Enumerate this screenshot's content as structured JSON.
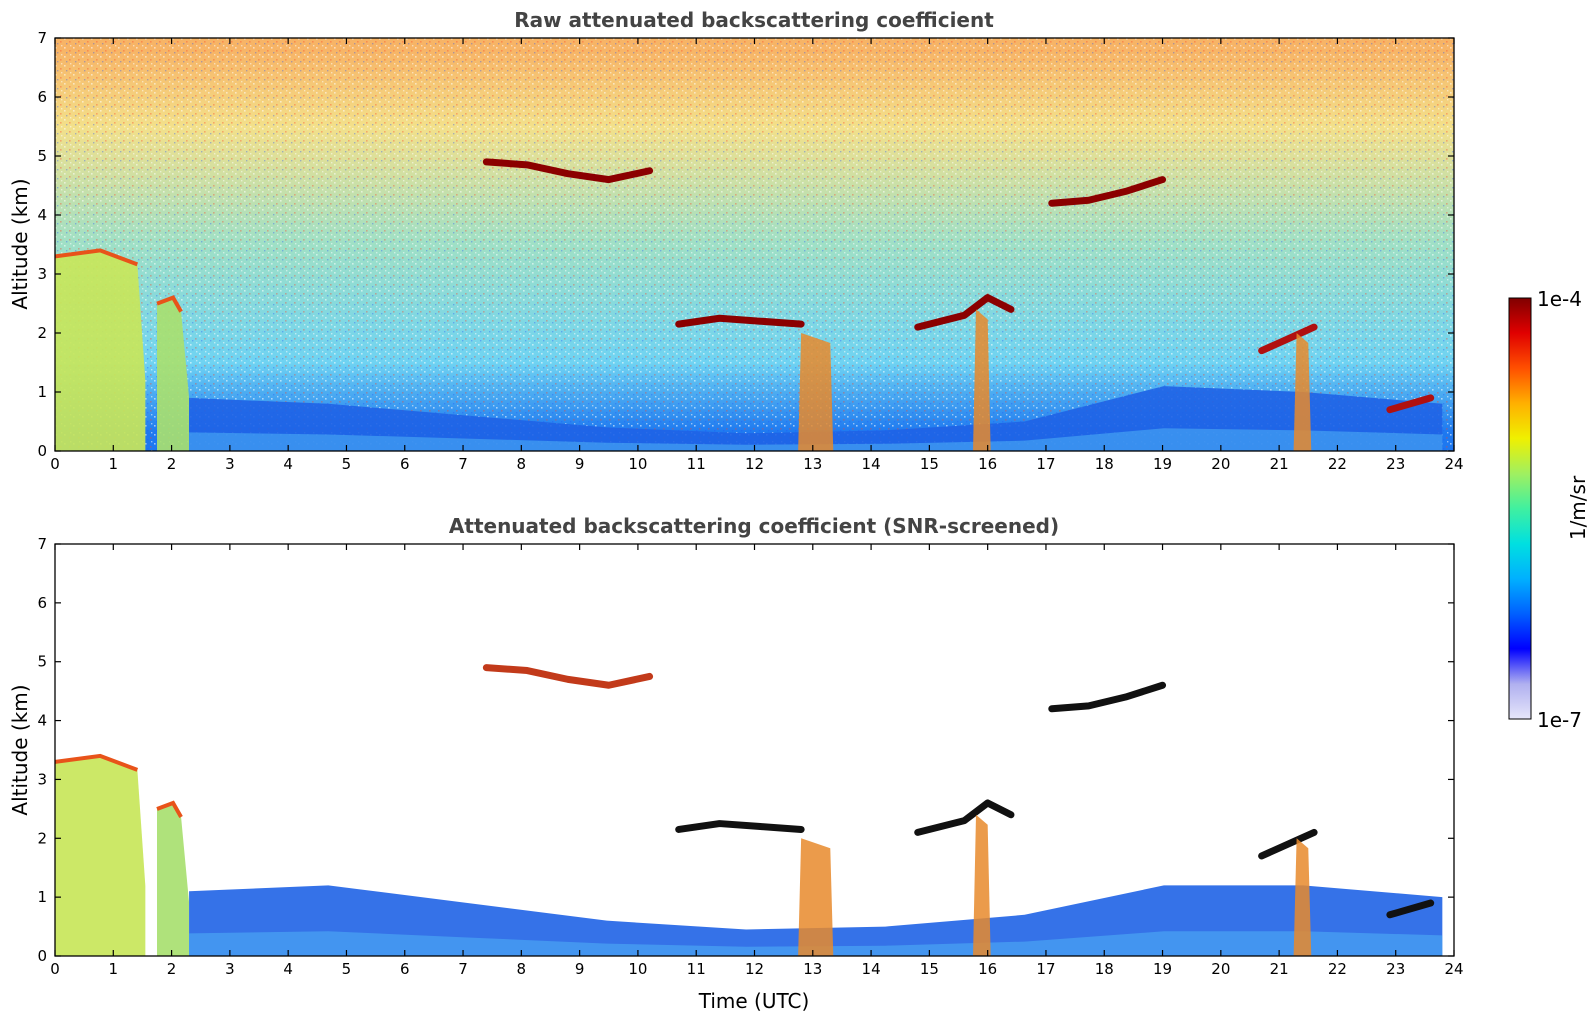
{
  "chart_data": [
    {
      "type": "heatmap",
      "title": "Raw attenuated backscattering coefficient",
      "xlabel": "",
      "ylabel": "Altitude (km)",
      "xlim": [
        0,
        24
      ],
      "ylim": [
        0,
        7
      ],
      "xticks": [
        "0",
        "1",
        "2",
        "3",
        "4",
        "5",
        "6",
        "7",
        "8",
        "9",
        "10",
        "11",
        "12",
        "13",
        "14",
        "15",
        "16",
        "17",
        "18",
        "19",
        "20",
        "21",
        "22",
        "23",
        "24"
      ],
      "yticks": [
        "0",
        "1",
        "2",
        "3",
        "4",
        "5",
        "6",
        "7"
      ],
      "color_scale": "log",
      "background": {
        "description": "noisy signal everywhere; values increase with altitude",
        "levels_by_altitude": [
          {
            "altitude_km": 0.3,
            "color": "#1d78f0"
          },
          {
            "altitude_km": 1.5,
            "color": "#6fd3f2"
          },
          {
            "altitude_km": 3.5,
            "color": "#9fe0c6"
          },
          {
            "altitude_km": 5.5,
            "color": "#f3e08a"
          },
          {
            "altitude_km": 6.8,
            "color": "#f7b466"
          }
        ]
      },
      "features": [
        {
          "kind": "low_cloud_column",
          "t": [
            0.0,
            1.55
          ],
          "top_km": 3.4,
          "color": "#c8e65a"
        },
        {
          "kind": "low_cloud_column",
          "t": [
            1.75,
            2.3
          ],
          "top_km": 2.6,
          "color": "#a8e070"
        },
        {
          "kind": "boundary_layer",
          "t": [
            2.3,
            23.8
          ],
          "top_km": [
            0.9,
            0.8,
            0.6,
            0.4,
            0.3,
            0.35,
            0.5,
            1.1,
            1.0,
            0.8
          ],
          "color": "#1f63e6"
        },
        {
          "kind": "cloud_layer",
          "t": [
            7.4,
            10.2
          ],
          "alt_km": [
            4.9,
            4.85,
            4.7,
            4.6,
            4.75
          ],
          "color": "#8b0000"
        },
        {
          "kind": "cloud_layer",
          "t": [
            10.7,
            12.8
          ],
          "alt_km": [
            2.15,
            2.25,
            2.2,
            2.15
          ],
          "color": "#8b0000"
        },
        {
          "kind": "cloud_layer",
          "t": [
            14.8,
            16.4
          ],
          "alt_km": [
            2.1,
            2.2,
            2.3,
            2.6,
            2.4
          ],
          "color": "#8b0000"
        },
        {
          "kind": "cloud_layer",
          "t": [
            17.1,
            19.0
          ],
          "alt_km": [
            4.2,
            4.25,
            4.4,
            4.6
          ],
          "color": "#8b0000"
        },
        {
          "kind": "cloud_layer",
          "t": [
            20.7,
            21.6
          ],
          "alt_km": [
            1.7,
            1.9,
            2.1
          ],
          "color": "#b01010"
        },
        {
          "kind": "cloud_layer",
          "t": [
            22.9,
            23.6
          ],
          "alt_km": [
            0.7,
            0.9
          ],
          "color": "#b01010"
        },
        {
          "kind": "precipitation_column",
          "t": [
            12.8,
            13.3
          ],
          "top_km": 2.0,
          "color": "#e88a2c"
        },
        {
          "kind": "precipitation_column",
          "t": [
            15.8,
            16.0
          ],
          "top_km": 2.4,
          "color": "#e88a2c"
        },
        {
          "kind": "precipitation_column",
          "t": [
            21.3,
            21.5
          ],
          "top_km": 2.0,
          "color": "#e88a2c"
        }
      ]
    },
    {
      "type": "heatmap",
      "title": "Attenuated backscattering coefficient (SNR-screened)",
      "xlabel": "Time (UTC)",
      "ylabel": "Altitude (km)",
      "xlim": [
        0,
        24
      ],
      "ylim": [
        0,
        7
      ],
      "xticks": [
        "0",
        "1",
        "2",
        "3",
        "4",
        "5",
        "6",
        "7",
        "8",
        "9",
        "10",
        "11",
        "12",
        "13",
        "14",
        "15",
        "16",
        "17",
        "18",
        "19",
        "20",
        "21",
        "22",
        "23",
        "24"
      ],
      "yticks": [
        "0",
        "1",
        "2",
        "3",
        "4",
        "5",
        "6",
        "7"
      ],
      "color_scale": "log",
      "background": {
        "description": "white where signal screened out",
        "color": "#ffffff"
      },
      "features": [
        {
          "kind": "low_cloud_column",
          "t": [
            0.0,
            1.55
          ],
          "top_km": 3.4,
          "color": "#c8e65a"
        },
        {
          "kind": "low_cloud_column",
          "t": [
            1.75,
            2.3
          ],
          "top_km": 2.6,
          "color": "#a8e070"
        },
        {
          "kind": "boundary_layer",
          "t": [
            2.3,
            23.8
          ],
          "top_km": [
            1.1,
            1.2,
            0.9,
            0.6,
            0.45,
            0.5,
            0.7,
            1.2,
            1.2,
            1.0
          ],
          "color": "#1f63e6"
        },
        {
          "kind": "cloud_layer",
          "t": [
            7.4,
            10.2
          ],
          "alt_km": [
            4.9,
            4.85,
            4.7,
            4.6,
            4.75
          ],
          "color": "#c23a1a"
        },
        {
          "kind": "cloud_layer",
          "t": [
            10.7,
            12.8
          ],
          "alt_km": [
            2.15,
            2.25,
            2.2,
            2.15
          ],
          "color": "#111111"
        },
        {
          "kind": "cloud_layer",
          "t": [
            14.8,
            16.4
          ],
          "alt_km": [
            2.1,
            2.2,
            2.3,
            2.6,
            2.4
          ],
          "color": "#111111"
        },
        {
          "kind": "cloud_layer",
          "t": [
            17.1,
            19.0
          ],
          "alt_km": [
            4.2,
            4.25,
            4.4,
            4.6
          ],
          "color": "#111111"
        },
        {
          "kind": "cloud_layer",
          "t": [
            20.7,
            21.6
          ],
          "alt_km": [
            1.7,
            1.9,
            2.1
          ],
          "color": "#111111"
        },
        {
          "kind": "cloud_layer",
          "t": [
            22.9,
            23.6
          ],
          "alt_km": [
            0.7,
            0.9
          ],
          "color": "#111111"
        },
        {
          "kind": "precipitation_column",
          "t": [
            12.8,
            13.3
          ],
          "top_km": 2.0,
          "color": "#e88a2c"
        },
        {
          "kind": "precipitation_column",
          "t": [
            15.8,
            16.0
          ],
          "top_km": 2.4,
          "color": "#e88a2c"
        },
        {
          "kind": "precipitation_column",
          "t": [
            21.3,
            21.5
          ],
          "top_km": 2.0,
          "color": "#e88a2c"
        }
      ]
    }
  ],
  "colorbar": {
    "label": "1/m/sr",
    "max_label": "1e-4",
    "min_label": "1e-7",
    "scale": "log",
    "colormap": [
      "#e6e6fa",
      "#b0b0f0",
      "#0000ff",
      "#0060ff",
      "#00b0ff",
      "#00e0e0",
      "#40f0a0",
      "#a0f060",
      "#f0f000",
      "#ffb000",
      "#ff5000",
      "#e00000",
      "#800000"
    ]
  }
}
